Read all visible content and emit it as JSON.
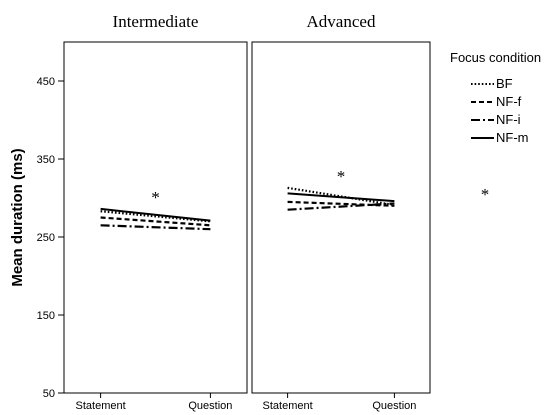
{
  "chart_data": {
    "type": "line",
    "ylabel": "Mean duration (ms)",
    "ylim": [
      50,
      500
    ],
    "yticks": [
      50,
      150,
      250,
      350,
      450
    ],
    "categories": [
      "Statement",
      "Question"
    ],
    "legend": {
      "title": "Focus condition",
      "placement": "right",
      "entries": [
        "BF",
        "NF-f",
        "NF-i",
        "NF-m"
      ]
    },
    "extra_marker": "*",
    "panels": [
      {
        "title": "Intermediate",
        "annotation": "*",
        "series": [
          {
            "name": "BF",
            "dash": "dotted",
            "values": [
              283,
              270
            ]
          },
          {
            "name": "NF-f",
            "dash": "dashed",
            "values": [
              275,
              265
            ]
          },
          {
            "name": "NF-i",
            "dash": "dashdot",
            "values": [
              265,
              260
            ]
          },
          {
            "name": "NF-m",
            "dash": "solid",
            "values": [
              286,
              271
            ]
          }
        ]
      },
      {
        "title": "Advanced",
        "annotation": "*",
        "series": [
          {
            "name": "BF",
            "dash": "dotted",
            "values": [
              313,
              291
            ]
          },
          {
            "name": "NF-f",
            "dash": "dashed",
            "values": [
              295,
              290
            ]
          },
          {
            "name": "NF-i",
            "dash": "dashdot",
            "values": [
              285,
              293
            ]
          },
          {
            "name": "NF-m",
            "dash": "solid",
            "values": [
              306,
              296
            ]
          }
        ]
      }
    ]
  }
}
